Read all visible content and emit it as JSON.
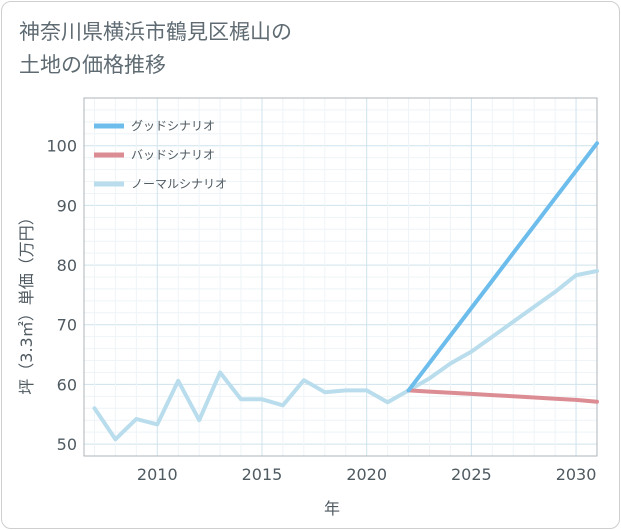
{
  "title_lines": [
    "神奈川県横浜市鶴見区梶山の",
    "土地の価格推移"
  ],
  "chart_data": {
    "type": "line",
    "title": "神奈川県横浜市鶴見区梶山の土地の価格推移",
    "xlabel": "年",
    "ylabel": "坪（3.3㎡）単価（万円）",
    "xlim": [
      2006.5,
      2031
    ],
    "ylim": [
      48,
      108
    ],
    "x_ticks": [
      2010,
      2015,
      2020,
      2025,
      2030
    ],
    "y_ticks": [
      50,
      60,
      70,
      80,
      90,
      100
    ],
    "grid": true,
    "legend_position": "top-left",
    "series": [
      {
        "name": "グッドシナリオ",
        "color": "#6cbcec",
        "x": [
          2022,
          2023,
          2024,
          2025,
          2026,
          2027,
          2028,
          2029,
          2030,
          2031
        ],
        "y": [
          59.0,
          63.6,
          68.2,
          72.8,
          77.4,
          82.0,
          86.6,
          91.2,
          95.8,
          100.4
        ]
      },
      {
        "name": "バッドシナリオ",
        "color": "#dc8d94",
        "x": [
          2022,
          2023,
          2024,
          2025,
          2026,
          2027,
          2028,
          2029,
          2030,
          2031
        ],
        "y": [
          59.0,
          58.8,
          58.6,
          58.4,
          58.2,
          58.0,
          57.8,
          57.6,
          57.4,
          57.1
        ]
      },
      {
        "name": "ノーマルシナリオ",
        "color": "#b9ddec",
        "x": [
          2007,
          2008,
          2009,
          2010,
          2011,
          2012,
          2013,
          2014,
          2015,
          2016,
          2017,
          2018,
          2019,
          2020,
          2021,
          2022,
          2023,
          2024,
          2025,
          2026,
          2027,
          2028,
          2029,
          2030,
          2031
        ],
        "y": [
          56.0,
          50.8,
          54.2,
          53.3,
          60.6,
          54.0,
          62.0,
          57.5,
          57.5,
          56.5,
          60.7,
          58.7,
          59.0,
          59.0,
          57.0,
          59.0,
          61.0,
          63.5,
          65.5,
          68.0,
          70.5,
          73.0,
          75.5,
          78.3,
          79.0
        ]
      }
    ]
  }
}
